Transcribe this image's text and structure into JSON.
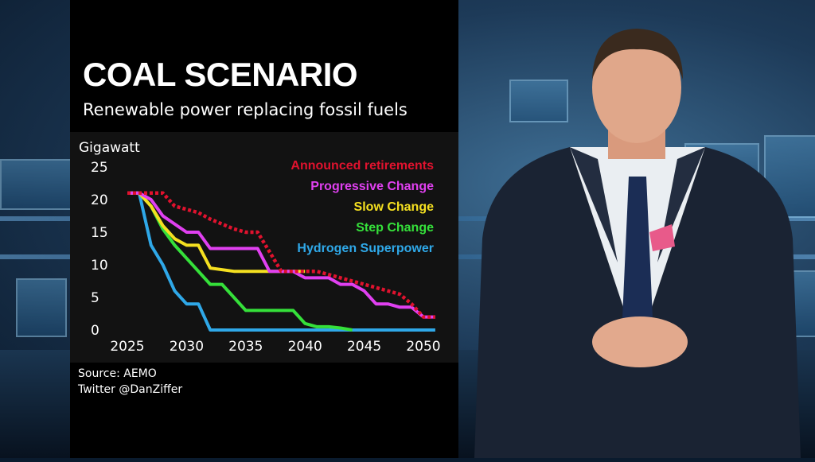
{
  "chart_data": {
    "type": "line",
    "title": "COAL SCENARIO",
    "subtitle": "Renewable power replacing fossil fuels",
    "ylabel": "Gigawatt",
    "xlabel": "",
    "ylim": [
      0,
      25
    ],
    "xlim": [
      2025,
      2051
    ],
    "yticks": [
      0,
      5,
      10,
      15,
      20,
      25
    ],
    "xticks": [
      2025,
      2030,
      2035,
      2040,
      2045,
      2050
    ],
    "legend_position": "top-right",
    "series": [
      {
        "name": "Announced retirements",
        "color": "#e0122e",
        "style": "dotted",
        "x": [
          2025,
          2026,
          2028,
          2029,
          2031,
          2032,
          2034,
          2035,
          2036,
          2037,
          2038,
          2040,
          2041,
          2043,
          2044,
          2046,
          2048,
          2049,
          2050,
          2051
        ],
        "y": [
          21,
          21,
          21,
          19,
          18,
          17,
          15.5,
          15,
          15,
          12,
          9,
          9,
          9,
          8,
          7.5,
          6.5,
          5.5,
          4,
          2,
          2
        ]
      },
      {
        "name": "Progressive Change",
        "color": "#e040f0",
        "style": "solid",
        "x": [
          2025,
          2026,
          2027,
          2028,
          2030,
          2031,
          2032,
          2035,
          2036,
          2037,
          2039,
          2040,
          2041,
          2042,
          2043,
          2044,
          2045,
          2046,
          2047,
          2048,
          2049,
          2050,
          2051
        ],
        "y": [
          21,
          21,
          20,
          17.5,
          15,
          15,
          12.5,
          12.5,
          12.5,
          9,
          9,
          8,
          8,
          8,
          7,
          7,
          6,
          4,
          4,
          3.5,
          3.5,
          2,
          2
        ]
      },
      {
        "name": "Slow Change",
        "color": "#f5e020",
        "style": "solid",
        "x": [
          2025,
          2026,
          2027,
          2028,
          2029,
          2030,
          2031,
          2032,
          2034,
          2036,
          2037,
          2039,
          2040
        ],
        "y": [
          21,
          21,
          19,
          16,
          14,
          13,
          13,
          9.5,
          9,
          9,
          9,
          9,
          9
        ]
      },
      {
        "name": "Step Change",
        "color": "#35e03a",
        "style": "solid",
        "x": [
          2025,
          2026,
          2027,
          2028,
          2029,
          2030,
          2031,
          2032,
          2033,
          2034,
          2035,
          2036,
          2037,
          2039,
          2040,
          2041,
          2042,
          2043,
          2044
        ],
        "y": [
          21,
          21,
          19,
          15.5,
          13,
          11,
          9,
          7,
          7,
          5,
          3,
          3,
          3,
          3,
          1,
          0.5,
          0.5,
          0.3,
          0
        ]
      },
      {
        "name": "Hydrogen Superpower",
        "color": "#2fa8e8",
        "style": "solid",
        "x": [
          2025,
          2026,
          2027,
          2028,
          2029,
          2030,
          2031,
          2032,
          2036,
          2040,
          2045,
          2050,
          2051
        ],
        "y": [
          21,
          21,
          13,
          10,
          6,
          4,
          4,
          0,
          0,
          0,
          0,
          0,
          0
        ]
      }
    ]
  },
  "source": {
    "line1": "Source: AEMO",
    "line2": "Twitter @DanZiffer"
  },
  "colors": {
    "panel": "#000000",
    "plot_bg": "#121212",
    "text": "#ffffff"
  }
}
